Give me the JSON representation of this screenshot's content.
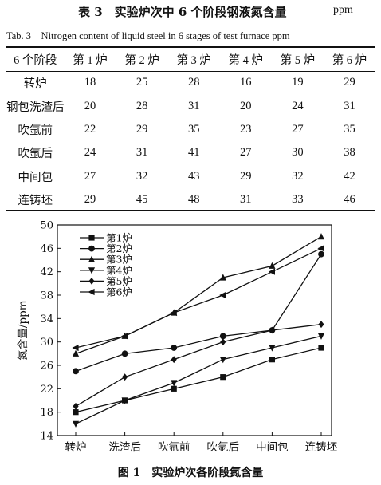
{
  "table": {
    "caption": "表 3　实验炉次中 6 个阶段钢液氮含量",
    "unit": "ppm",
    "caption_en": "Tab. 3　Nitrogen content of liquid steel in 6 stages of test furnace ppm",
    "headers": [
      "6 个阶段",
      "第 1 炉",
      "第 2 炉",
      "第 3 炉",
      "第 4 炉",
      "第 5 炉",
      "第 6 炉"
    ],
    "rows": [
      [
        "转炉",
        "18",
        "25",
        "28",
        "16",
        "19",
        "29"
      ],
      [
        "钢包洗渣后",
        "20",
        "28",
        "31",
        "20",
        "24",
        "31"
      ],
      [
        "吹氩前",
        "22",
        "29",
        "35",
        "23",
        "27",
        "35"
      ],
      [
        "吹氩后",
        "24",
        "31",
        "41",
        "27",
        "30",
        "38"
      ],
      [
        "中间包",
        "27",
        "32",
        "43",
        "29",
        "32",
        "42"
      ],
      [
        "连铸坯",
        "29",
        "45",
        "48",
        "31",
        "33",
        "46"
      ]
    ]
  },
  "chart_data": {
    "type": "line",
    "categories": [
      "转炉",
      "洗渣后",
      "吹氩前",
      "吹氩后",
      "中间包",
      "连铸坯"
    ],
    "ylabel": "氮含量/ppm",
    "ylim": [
      14,
      50
    ],
    "yticks": [
      14,
      18,
      22,
      26,
      30,
      34,
      38,
      42,
      46,
      50
    ],
    "legend_position": "top-left",
    "series": [
      {
        "name": "第1炉",
        "marker": "square",
        "values": [
          18,
          20,
          22,
          24,
          27,
          29
        ]
      },
      {
        "name": "第2炉",
        "marker": "circle",
        "values": [
          25,
          28,
          29,
          31,
          32,
          45
        ]
      },
      {
        "name": "第3炉",
        "marker": "triangle-up",
        "values": [
          28,
          31,
          35,
          41,
          43,
          48
        ]
      },
      {
        "name": "第4炉",
        "marker": "triangle-down",
        "values": [
          16,
          20,
          23,
          27,
          29,
          31
        ]
      },
      {
        "name": "第5炉",
        "marker": "diamond",
        "values": [
          19,
          24,
          27,
          30,
          32,
          33
        ]
      },
      {
        "name": "第6炉",
        "marker": "triangle-left",
        "values": [
          29,
          31,
          35,
          38,
          42,
          46
        ]
      }
    ]
  },
  "figure": {
    "caption": "图 1　实验炉次各阶段氮含量"
  }
}
